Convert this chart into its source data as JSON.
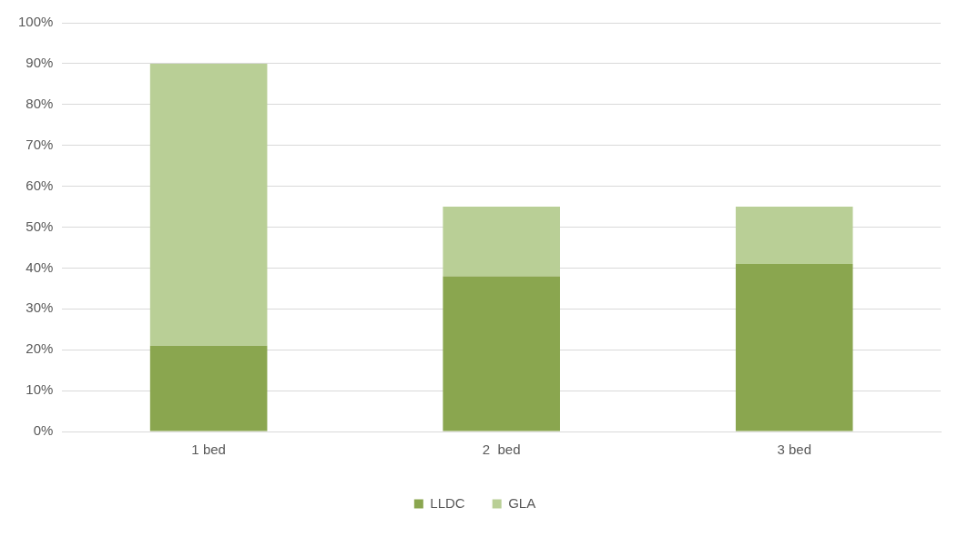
{
  "chart_data": {
    "type": "bar",
    "stacked": true,
    "categories": [
      "1 bed",
      "2  bed",
      "3 bed"
    ],
    "series": [
      {
        "name": "LLDC",
        "color": "#8aa64f",
        "values": [
          21,
          38,
          41
        ]
      },
      {
        "name": "GLA",
        "color": "#b9cf96",
        "values": [
          69,
          17,
          14
        ]
      }
    ],
    "ylim": [
      0,
      100
    ],
    "yticks": [
      {
        "value": 0,
        "label": "0%"
      },
      {
        "value": 10,
        "label": "10%"
      },
      {
        "value": 20,
        "label": "20%"
      },
      {
        "value": 30,
        "label": "30%"
      },
      {
        "value": 40,
        "label": "40%"
      },
      {
        "value": 50,
        "label": "50%"
      },
      {
        "value": 60,
        "label": "60%"
      },
      {
        "value": 70,
        "label": "70%"
      },
      {
        "value": 80,
        "label": "80%"
      },
      {
        "value": 90,
        "label": "90%"
      },
      {
        "value": 100,
        "label": "100%"
      }
    ],
    "grid": "y",
    "legend": "bottom"
  }
}
